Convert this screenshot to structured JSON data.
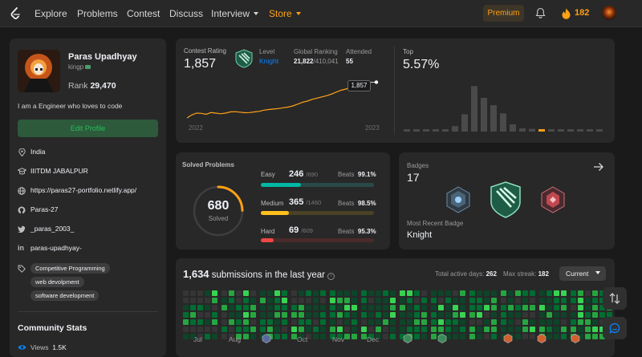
{
  "nav": {
    "items": [
      "Explore",
      "Problems",
      "Contest",
      "Discuss",
      "Interview",
      "Store"
    ],
    "premium": "Premium",
    "streak": "182"
  },
  "colors": {
    "accent": "#ffa116",
    "easy": "#00b8a3",
    "medium": "#ffc01e",
    "hard": "#ef4743",
    "link": "#0a84ff",
    "green": "#2cbb5d"
  },
  "profile": {
    "name": "Paras Upadhyay",
    "username": "kingp",
    "rank_label": "Rank",
    "rank": "29,470",
    "bio": "I am a Engineer who loves to code",
    "edit": "Edit Profile",
    "country": "India",
    "school": "IIITDM JABALPUR",
    "website": "https://paras27-portfolio.netlify.app/",
    "github": "Paras-27",
    "twitter": "_paras_2003_",
    "linkedin": "paras-upadhyay-",
    "skills": [
      "Competitive Programming",
      "web devolpment",
      "software development"
    ]
  },
  "community": {
    "title": "Community Stats",
    "views_label": "Views",
    "views": "1.5K"
  },
  "contest": {
    "rating_label": "Contest Rating",
    "rating": "1,857",
    "level_label": "Level",
    "level": "Knight",
    "global_label": "Global Ranking",
    "global_rank": "21,822",
    "global_total": "/410,041",
    "attended_label": "Attended",
    "attended": "55",
    "tooltip": "1,857",
    "year_start": "2022",
    "year_end": "2023",
    "top_label": "Top",
    "top_value": "5.57%",
    "rating_history": [
      1560,
      1585,
      1600,
      1598,
      1590,
      1605,
      1600,
      1595,
      1600,
      1610,
      1612,
      1608,
      1603,
      1605,
      1610,
      1615,
      1625,
      1630,
      1634,
      1638,
      1645,
      1650,
      1660,
      1675,
      1690,
      1700,
      1715,
      1725,
      1735,
      1745,
      1758,
      1775,
      1790,
      1800,
      1815,
      1830,
      1845,
      1857
    ],
    "distribution": [
      2,
      3,
      3,
      4,
      5,
      12,
      38,
      100,
      74,
      58,
      40,
      16,
      7,
      6,
      3,
      3,
      2,
      2,
      2,
      2,
      2
    ],
    "distribution_highlight": 14
  },
  "solved": {
    "title": "Solved Problems",
    "total": "680",
    "total_label": "Solved",
    "easy": {
      "label": "Easy",
      "count": "246",
      "total": "/690",
      "beats_label": "Beats",
      "beats": "99.1%"
    },
    "medium": {
      "label": "Medium",
      "count": "365",
      "total": "/1460",
      "beats_label": "Beats",
      "beats": "98.5%"
    },
    "hard": {
      "label": "Hard",
      "count": "69",
      "total": "/609",
      "beats_label": "Beats",
      "beats": "95.3%"
    }
  },
  "badges": {
    "title": "Badges",
    "count": "17",
    "recent_label": "Most Recent Badge",
    "recent": "Knight"
  },
  "submissions": {
    "count": "1,634",
    "label": "submissions in the last year",
    "active_label": "Total active days:",
    "active": "262",
    "streak_label": "Max streak:",
    "streak": "182",
    "select": "Current",
    "months": [
      "Jul",
      "Aug",
      "Oct",
      "Nov",
      "Dec"
    ]
  }
}
